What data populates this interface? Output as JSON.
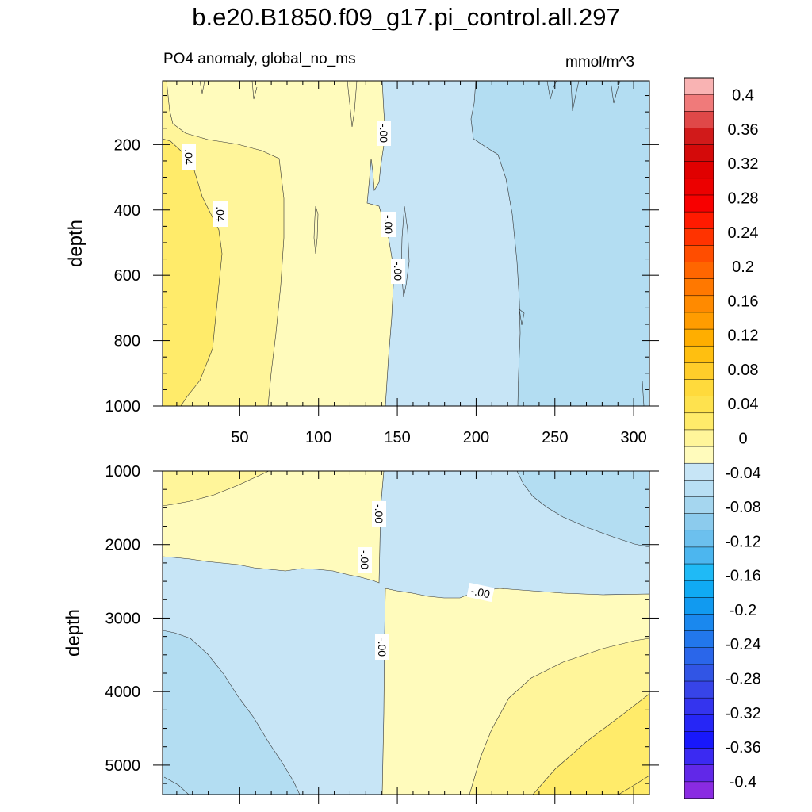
{
  "title": "b.e20.B1850.f09_g17.pi_control.all.297",
  "subtitle_left": "PO4 anomaly, global_no_ms",
  "subtitle_right": "mmol/m^3",
  "chart_data": [
    {
      "type": "heatmap",
      "panel": "upper",
      "ylabel": "depth",
      "xlabel": "",
      "xlim": [
        1,
        310
      ],
      "ylim": [
        1000,
        5
      ],
      "x_ticks": [
        50,
        100,
        150,
        200,
        250,
        300
      ],
      "y_ticks": [
        200,
        400,
        600,
        800,
        1000
      ],
      "contour_labels": [
        ".04",
        ".04",
        "-.00",
        "-.00",
        "-.00"
      ],
      "regions": [
        {
          "level": 0.04,
          "description": "left band, x 1-30"
        },
        {
          "level": 0.02,
          "description": "x 30-142"
        },
        {
          "level": -0.02,
          "description": "x 142-228"
        },
        {
          "level": -0.04,
          "description": "x 228-310"
        }
      ]
    },
    {
      "type": "heatmap",
      "panel": "lower",
      "ylabel": "depth",
      "xlabel": "",
      "xlim": [
        1,
        310
      ],
      "ylim": [
        5400,
        1000
      ],
      "x_ticks": [
        50,
        100,
        150,
        200,
        250,
        300
      ],
      "y_ticks": [
        1000,
        2000,
        3000,
        4000,
        5000
      ],
      "contour_labels": [
        "-.00",
        "-.00",
        "-.00",
        "-.00"
      ],
      "regions": [
        {
          "level": 0.04,
          "description": "top-left strip"
        },
        {
          "level": 0.02,
          "description": "upper-left, depth 1000-2200"
        },
        {
          "level": -0.02,
          "description": "upper-right and lower-left"
        },
        {
          "level": -0.04,
          "description": "corners"
        },
        {
          "level": 0.04,
          "description": "lower-right"
        },
        {
          "level": 0.06,
          "description": "bottom-right corner"
        }
      ]
    },
    {
      "type": "colorbar",
      "min": -0.42,
      "max": 0.42,
      "interval": 0.02,
      "tick_labels": [
        "0.4",
        "0.36",
        "0.32",
        "0.28",
        "0.24",
        "0.2",
        "0.16",
        "0.12",
        "0.08",
        "0.04",
        "0",
        "-0.04",
        "-0.08",
        "-0.12",
        "-0.16",
        "-0.2",
        "-0.24",
        "-0.28",
        "-0.32",
        "-0.36",
        "-0.4"
      ],
      "tick_values": [
        0.4,
        0.36,
        0.32,
        0.28,
        0.24,
        0.2,
        0.16,
        0.12,
        0.08,
        0.04,
        0,
        -0.04,
        -0.08,
        -0.12,
        -0.16,
        -0.2,
        -0.24,
        -0.28,
        -0.32,
        -0.36,
        -0.4
      ],
      "colors": [
        "#f9b3b3",
        "#f07a7a",
        "#e04848",
        "#d11a1a",
        "#d40a0a",
        "#e00000",
        "#ec0000",
        "#f80000",
        "#ff1a00",
        "#ff3300",
        "#ff4d00",
        "#ff6600",
        "#ff7800",
        "#ff8a00",
        "#ff9c00",
        "#ffae00",
        "#ffbf10",
        "#ffcd2a",
        "#ffda3c",
        "#fee24e",
        "#ffeb6a",
        "#fff59a",
        "#fffbbc",
        "#c7e5f6",
        "#b8dff4",
        "#a5d6ef",
        "#8ccbed",
        "#6cc0ee",
        "#4cb6ef",
        "#1fbaf6",
        "#10aaf3",
        "#119af0",
        "#1a88ee",
        "#2277ec",
        "#2a66ea",
        "#3155e5",
        "#3744e8",
        "#3434ee",
        "#2626f6",
        "#1818fc",
        "#3b2af2",
        "#6128e8",
        "#8a2be2"
      ]
    }
  ]
}
